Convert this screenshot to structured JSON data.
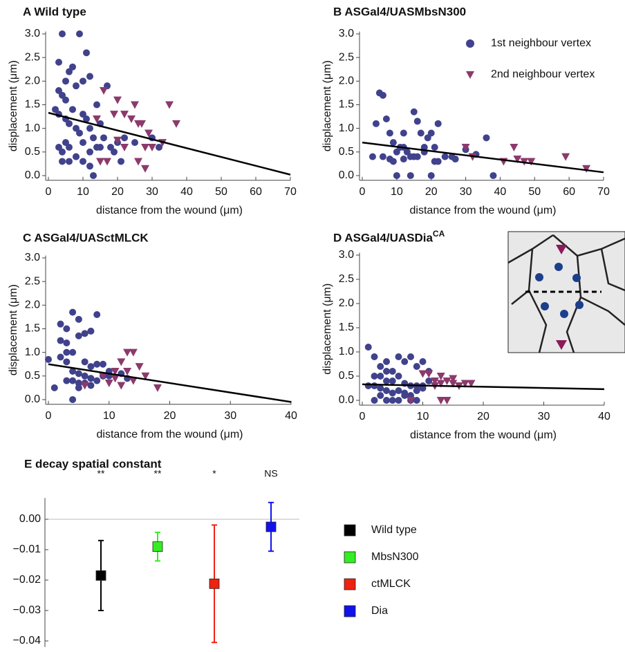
{
  "chart_data": [
    {
      "type": "scatter",
      "title": "A Wild type",
      "x_label": "distance from the wound (μm)",
      "y_label": "displacement (μm)",
      "xlim": [
        0,
        70
      ],
      "ylim": [
        -0.1,
        3.05
      ],
      "xticks": [
        0,
        10,
        20,
        30,
        40,
        50,
        60,
        70
      ],
      "yticks": [
        {
          "value": 0,
          "label": "0.0"
        },
        {
          "value": 0.5,
          "label": "0.5"
        },
        {
          "value": 1,
          "label": "1.0"
        },
        {
          "value": 1.5,
          "label": "1.5"
        },
        {
          "value": 2,
          "label": "2.0"
        },
        {
          "value": 2.5,
          "label": "2.5"
        },
        {
          "value": 3,
          "label": "3.0"
        }
      ],
      "series": [
        {
          "style": "circle",
          "color": "#41428c",
          "x": [
            3,
            4,
            5,
            6,
            9,
            11,
            3,
            5,
            7,
            8,
            10,
            12,
            14,
            2,
            3,
            4,
            5,
            6,
            7,
            8,
            9,
            10,
            11,
            12,
            13,
            15,
            17,
            3,
            4,
            5,
            6,
            8,
            10,
            12,
            14,
            16,
            18,
            20,
            22,
            4,
            6,
            8,
            10,
            12,
            15,
            19,
            21,
            25,
            30,
            32,
            13
          ],
          "values": [
            2.4,
            3.0,
            2.0,
            2.2,
            3.0,
            2.6,
            1.8,
            1.6,
            2.3,
            1.9,
            2.0,
            2.1,
            1.5,
            1.4,
            1.3,
            1.7,
            1.2,
            1.1,
            1.4,
            1.0,
            0.9,
            1.3,
            1.2,
            1.0,
            0.8,
            1.1,
            1.9,
            0.6,
            0.5,
            0.7,
            0.6,
            0.4,
            0.7,
            0.5,
            0.6,
            0.8,
            0.6,
            0.7,
            0.8,
            0.3,
            0.3,
            0.4,
            0.3,
            0.2,
            0.6,
            0.5,
            0.3,
            0.7,
            0.8,
            0.6,
            0.0
          ]
        },
        {
          "style": "triangle",
          "color": "#8b3a6b",
          "x": [
            16,
            19,
            20,
            22,
            24,
            25,
            26,
            27,
            28,
            29,
            30,
            33,
            35,
            37,
            20,
            22,
            26,
            28,
            15,
            17,
            14
          ],
          "values": [
            1.8,
            1.3,
            1.6,
            1.3,
            1.2,
            1.5,
            1.1,
            1.1,
            0.6,
            0.9,
            0.6,
            0.7,
            1.5,
            1.1,
            0.75,
            0.6,
            0.3,
            0.15,
            0.3,
            0.3,
            1.2
          ]
        },
        {
          "style": "line",
          "color": "#000000",
          "x": [
            0,
            70
          ],
          "values": [
            1.33,
            0.02
          ]
        }
      ]
    },
    {
      "type": "scatter",
      "title": "B ASGal4/UASMbsN300",
      "x_label": "distance from the wound (μm)",
      "y_label": "displacement (μm)",
      "xlim": [
        0,
        70
      ],
      "ylim": [
        -0.1,
        3.05
      ],
      "xticks": [
        0,
        10,
        20,
        30,
        40,
        50,
        60,
        70
      ],
      "yticks": [
        {
          "value": 0,
          "label": "0.0"
        },
        {
          "value": 0.5,
          "label": "0.5"
        },
        {
          "value": 1,
          "label": "1.0"
        },
        {
          "value": 1.5,
          "label": "1.5"
        },
        {
          "value": 2,
          "label": "2.0"
        },
        {
          "value": 2.5,
          "label": "2.5"
        },
        {
          "value": 3,
          "label": "3.0"
        }
      ],
      "series": [
        {
          "name": "1st neighbour vertex",
          "style": "circle",
          "color": "#41428c",
          "x": [
            5,
            6,
            4,
            7,
            8,
            9,
            10,
            11,
            12,
            13,
            14,
            15,
            16,
            17,
            18,
            19,
            20,
            21,
            22,
            3,
            6,
            9,
            12,
            15,
            18,
            21,
            24,
            27,
            30,
            33,
            36,
            38,
            10,
            14,
            20,
            8,
            12,
            16,
            22,
            26
          ],
          "values": [
            1.75,
            1.7,
            1.1,
            1.2,
            0.9,
            0.7,
            0.5,
            0.6,
            0.9,
            0.5,
            0.4,
            1.35,
            1.15,
            0.9,
            0.6,
            0.8,
            0.9,
            0.6,
            1.1,
            0.4,
            0.4,
            0.3,
            0.35,
            0.4,
            0.5,
            0.3,
            0.4,
            0.35,
            0.55,
            0.45,
            0.8,
            0.0,
            0.0,
            0.0,
            0.0,
            0.35,
            0.6,
            0.4,
            0.3,
            0.4
          ]
        },
        {
          "name": "2nd neighbour vertex",
          "style": "triangle",
          "color": "#8b3a6b",
          "x": [
            30,
            32,
            41,
            44,
            45,
            47,
            49,
            59,
            65
          ],
          "values": [
            0.6,
            0.4,
            0.3,
            0.6,
            0.35,
            0.3,
            0.3,
            0.4,
            0.15
          ]
        },
        {
          "style": "line",
          "color": "#000000",
          "x": [
            0,
            70
          ],
          "values": [
            0.7,
            0.07
          ]
        }
      ]
    },
    {
      "type": "scatter",
      "title": "C ASGal4/UASctMLCK",
      "x_label": "distance from the wound (μm)",
      "y_label": "displacement (μm)",
      "xlim": [
        0,
        40
      ],
      "ylim": [
        -0.1,
        3.05
      ],
      "xticks": [
        0,
        10,
        20,
        30,
        40
      ],
      "yticks": [
        {
          "value": 0,
          "label": "0.0"
        },
        {
          "value": 0.5,
          "label": "0.5"
        },
        {
          "value": 1,
          "label": "1.0"
        },
        {
          "value": 1.5,
          "label": "1.5"
        },
        {
          "value": 2,
          "label": "2.0"
        },
        {
          "value": 2.5,
          "label": "2.5"
        },
        {
          "value": 3,
          "label": "3.0"
        }
      ],
      "series": [
        {
          "style": "circle",
          "color": "#41428c",
          "x": [
            0,
            2,
            3,
            3,
            4,
            4,
            5,
            5,
            6,
            6,
            7,
            7,
            8,
            8,
            2,
            3,
            4,
            5,
            6,
            7,
            9,
            10,
            3,
            4,
            5,
            6,
            7,
            8,
            9,
            10,
            12,
            13,
            1,
            4,
            5,
            7,
            3,
            2
          ],
          "values": [
            0.85,
            1.6,
            1.5,
            1.2,
            1.85,
            1.0,
            1.7,
            1.35,
            1.4,
            0.8,
            1.45,
            0.7,
            1.8,
            0.75,
            1.25,
            1.0,
            0.6,
            0.55,
            0.5,
            0.45,
            0.75,
            0.6,
            0.4,
            0.4,
            0.35,
            0.35,
            0.45,
            0.4,
            0.5,
            0.5,
            0.55,
            0.45,
            0.25,
            0.0,
            0.25,
            0.3,
            0.8,
            0.9
          ]
        },
        {
          "style": "triangle",
          "color": "#8b3a6b",
          "x": [
            6,
            9,
            10,
            11,
            12,
            13,
            13,
            14,
            14,
            15,
            16,
            18,
            12,
            11
          ],
          "values": [
            0.3,
            0.5,
            0.35,
            0.45,
            0.8,
            1.0,
            0.6,
            1.0,
            0.4,
            0.7,
            0.5,
            0.25,
            0.3,
            0.6
          ]
        },
        {
          "style": "line",
          "color": "#000000",
          "x": [
            0,
            40
          ],
          "values": [
            0.75,
            -0.05
          ]
        }
      ]
    },
    {
      "type": "scatter",
      "title": "D ASGal4/UASDia",
      "title_superscript": "CA",
      "x_label": "distance from the wound (μm)",
      "y_label": "displacement (μm)",
      "xlim": [
        0,
        40
      ],
      "ylim": [
        -0.1,
        3.05
      ],
      "xticks": [
        0,
        10,
        20,
        30,
        40
      ],
      "yticks": [
        {
          "value": 0,
          "label": "0.0"
        },
        {
          "value": 0.5,
          "label": "0.5"
        },
        {
          "value": 1,
          "label": "1.0"
        },
        {
          "value": 1.5,
          "label": "1.5"
        },
        {
          "value": 2,
          "label": "2.0"
        },
        {
          "value": 2.5,
          "label": "2.5"
        },
        {
          "value": 3,
          "label": "3.0"
        }
      ],
      "series": [
        {
          "style": "circle",
          "color": "#41428c",
          "x": [
            1,
            2,
            3,
            4,
            5,
            6,
            7,
            8,
            9,
            10,
            11,
            2,
            3,
            4,
            5,
            6,
            7,
            8,
            9,
            10,
            1,
            2,
            3,
            4,
            5,
            6,
            7,
            8,
            9,
            10,
            2,
            4,
            6,
            8,
            3,
            5,
            7,
            9,
            11,
            4
          ],
          "values": [
            1.1,
            0.9,
            0.7,
            0.8,
            0.6,
            0.9,
            0.8,
            0.9,
            0.7,
            0.8,
            0.4,
            0.5,
            0.5,
            0.4,
            0.4,
            0.5,
            0.35,
            0.3,
            0.3,
            0.3,
            0.3,
            0.3,
            0.25,
            0.2,
            0.15,
            0.2,
            0.15,
            0.1,
            0.2,
            0.25,
            0.0,
            0.0,
            0.0,
            0.0,
            0.1,
            0.0,
            0.1,
            0.0,
            0.6,
            0.6
          ]
        },
        {
          "style": "triangle",
          "color": "#8b3a6b",
          "x": [
            8,
            10,
            11,
            12,
            12,
            13,
            13,
            14,
            15,
            15,
            16,
            17,
            18,
            14,
            13
          ],
          "values": [
            0.0,
            0.55,
            0.55,
            0.4,
            0.3,
            0.35,
            0.5,
            0.4,
            0.35,
            0.45,
            0.3,
            0.35,
            0.35,
            0.0,
            0.0
          ]
        },
        {
          "style": "line",
          "color": "#000000",
          "x": [
            0,
            40
          ],
          "values": [
            0.33,
            0.23
          ]
        }
      ]
    },
    {
      "type": "errorbar",
      "title": "E decay spatial constant",
      "categories": [
        "Wild type",
        "MbsN300",
        "ctMLCK",
        "Dia"
      ],
      "values": [
        -0.0185,
        -0.009,
        -0.0212,
        -0.0025
      ],
      "errors": [
        0.0115,
        0.0047,
        0.0193,
        0.008
      ],
      "colors": [
        "#000000",
        "#33ee22",
        "#ee2211",
        "#1111ee"
      ],
      "annotations": [
        "**",
        "**",
        "*",
        "NS"
      ],
      "ylim": [
        -0.042,
        0.007
      ],
      "yticks": [
        {
          "value": -0.04,
          "label": "−0.04"
        },
        {
          "value": -0.03,
          "label": "−0.03"
        },
        {
          "value": -0.02,
          "label": "−0.02"
        },
        {
          "value": -0.01,
          "label": "−0.01"
        },
        {
          "value": 0,
          "label": "0.00"
        }
      ]
    }
  ]
}
